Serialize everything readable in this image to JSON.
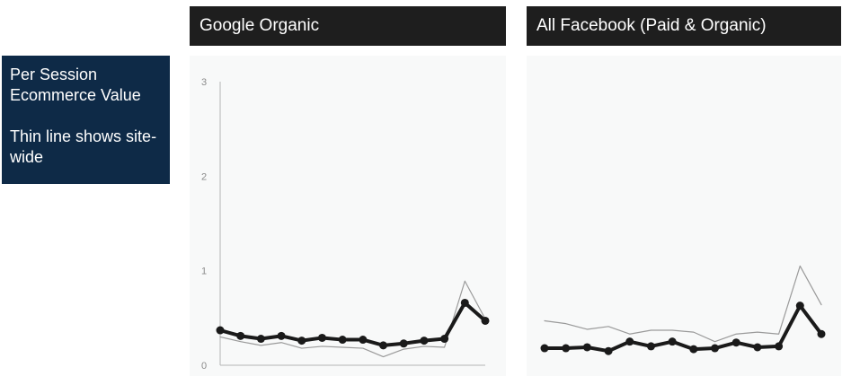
{
  "side_panel": {
    "line1": "Per Session Ecommerce Value",
    "line2": "Thin line shows site-wide"
  },
  "colors": {
    "side_panel_bg": "#0e2a47",
    "header_bg": "#1e1e1e",
    "plot_bg": "#f8f9f9",
    "thick_line": "#1a1a1a",
    "thin_line": "#9a9a9a"
  },
  "chart_data": [
    {
      "type": "line",
      "title": "Google Organic",
      "ylim": [
        0,
        3
      ],
      "yticks": [
        "0",
        "1",
        "2",
        "3"
      ],
      "x": [
        1,
        2,
        3,
        4,
        5,
        6,
        7,
        8,
        9,
        10,
        11,
        12,
        13,
        14
      ],
      "series": [
        {
          "style": "thick",
          "markers": true,
          "values": [
            0.37,
            0.31,
            0.28,
            0.31,
            0.26,
            0.29,
            0.27,
            0.27,
            0.21,
            0.23,
            0.26,
            0.28,
            0.66,
            0.47
          ]
        },
        {
          "style": "thin",
          "markers": false,
          "values": [
            0.3,
            0.25,
            0.21,
            0.24,
            0.18,
            0.2,
            0.19,
            0.18,
            0.09,
            0.17,
            0.2,
            0.19,
            0.89,
            0.49
          ]
        }
      ],
      "axes": true
    },
    {
      "type": "line",
      "title": "All Facebook (Paid & Organic)",
      "ylim": [
        0,
        3
      ],
      "x": [
        1,
        2,
        3,
        4,
        5,
        6,
        7,
        8,
        9,
        10,
        11,
        12,
        13,
        14
      ],
      "series": [
        {
          "style": "thick",
          "markers": true,
          "values": [
            0.18,
            0.18,
            0.19,
            0.15,
            0.25,
            0.2,
            0.25,
            0.17,
            0.18,
            0.24,
            0.19,
            0.2,
            0.63,
            0.33
          ]
        },
        {
          "style": "thin",
          "markers": false,
          "values": [
            0.47,
            0.44,
            0.38,
            0.41,
            0.33,
            0.37,
            0.37,
            0.35,
            0.25,
            0.33,
            0.35,
            0.33,
            1.05,
            0.64
          ]
        }
      ],
      "axes": false
    }
  ]
}
